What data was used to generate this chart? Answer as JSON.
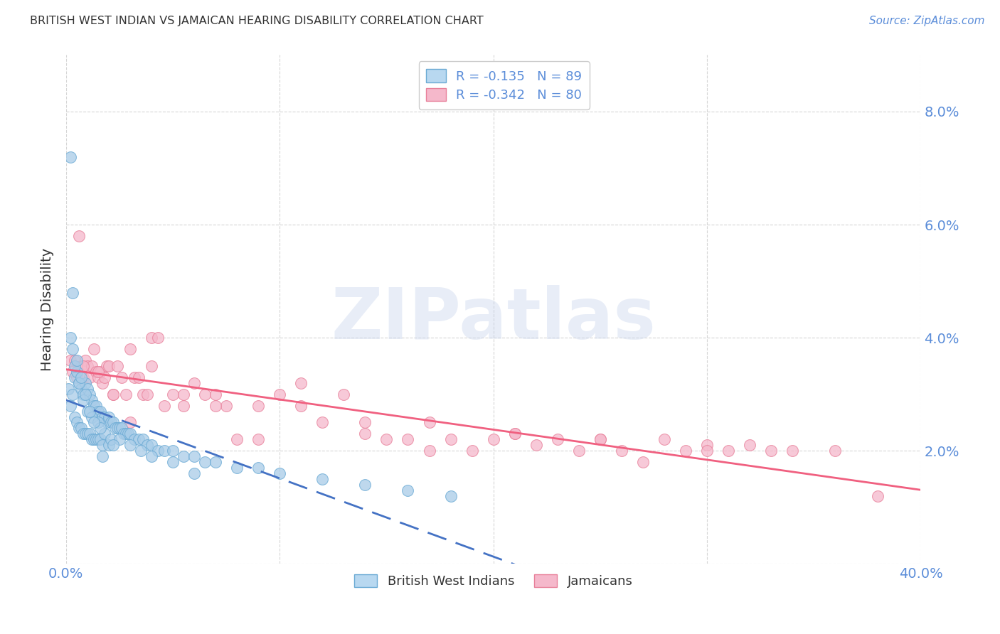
{
  "title": "BRITISH WEST INDIAN VS JAMAICAN HEARING DISABILITY CORRELATION CHART",
  "source": "Source: ZipAtlas.com",
  "ylabel": "Hearing Disability",
  "x_min": 0.0,
  "x_max": 0.4,
  "y_min": 0.0,
  "y_max": 0.09,
  "yticks": [
    0.0,
    0.02,
    0.04,
    0.06,
    0.08
  ],
  "ytick_labels": [
    "",
    "2.0%",
    "4.0%",
    "6.0%",
    "8.0%"
  ],
  "xticks": [
    0.0,
    0.1,
    0.2,
    0.3,
    0.4
  ],
  "xtick_labels": [
    "0.0%",
    "",
    "",
    "",
    "40.0%"
  ],
  "series1_label": "British West Indians",
  "series2_label": "Jamaicans",
  "series1_color": "#a8cce8",
  "series2_color": "#f5b8cb",
  "series1_edge_color": "#6aaad4",
  "series2_edge_color": "#e8809a",
  "line1_color": "#4472c4",
  "line2_color": "#f06080",
  "R1": -0.135,
  "N1": 89,
  "R2": -0.342,
  "N2": 80,
  "legend_box_color1": "#b8d8f0",
  "legend_box_color2": "#f5b8cb",
  "watermark": "ZIPatlas",
  "background_color": "#ffffff",
  "grid_color": "#cccccc",
  "title_color": "#333333",
  "tick_label_color": "#5b8dd9",
  "series1_x": [
    0.001,
    0.002,
    0.002,
    0.003,
    0.003,
    0.004,
    0.004,
    0.005,
    0.005,
    0.006,
    0.006,
    0.007,
    0.007,
    0.008,
    0.008,
    0.009,
    0.009,
    0.01,
    0.01,
    0.011,
    0.011,
    0.012,
    0.012,
    0.013,
    0.013,
    0.014,
    0.014,
    0.015,
    0.015,
    0.016,
    0.016,
    0.017,
    0.017,
    0.018,
    0.019,
    0.02,
    0.02,
    0.021,
    0.022,
    0.023,
    0.024,
    0.025,
    0.026,
    0.027,
    0.028,
    0.029,
    0.03,
    0.032,
    0.034,
    0.036,
    0.038,
    0.04,
    0.043,
    0.046,
    0.05,
    0.055,
    0.06,
    0.065,
    0.07,
    0.08,
    0.09,
    0.1,
    0.12,
    0.14,
    0.16,
    0.18,
    0.004,
    0.006,
    0.008,
    0.01,
    0.012,
    0.015,
    0.018,
    0.021,
    0.025,
    0.03,
    0.035,
    0.04,
    0.05,
    0.06,
    0.003,
    0.007,
    0.011,
    0.016,
    0.022,
    0.002,
    0.005,
    0.009,
    0.013,
    0.017
  ],
  "series1_y": [
    0.031,
    0.072,
    0.028,
    0.03,
    0.048,
    0.033,
    0.026,
    0.034,
    0.025,
    0.032,
    0.024,
    0.031,
    0.024,
    0.03,
    0.023,
    0.032,
    0.023,
    0.031,
    0.023,
    0.03,
    0.023,
    0.029,
    0.022,
    0.028,
    0.022,
    0.028,
    0.022,
    0.027,
    0.022,
    0.027,
    0.022,
    0.026,
    0.021,
    0.026,
    0.025,
    0.026,
    0.021,
    0.025,
    0.025,
    0.024,
    0.024,
    0.024,
    0.024,
    0.023,
    0.023,
    0.023,
    0.023,
    0.022,
    0.022,
    0.022,
    0.021,
    0.021,
    0.02,
    0.02,
    0.02,
    0.019,
    0.019,
    0.018,
    0.018,
    0.017,
    0.017,
    0.016,
    0.015,
    0.014,
    0.013,
    0.012,
    0.035,
    0.032,
    0.029,
    0.027,
    0.026,
    0.025,
    0.023,
    0.022,
    0.022,
    0.021,
    0.02,
    0.019,
    0.018,
    0.016,
    0.038,
    0.033,
    0.027,
    0.024,
    0.021,
    0.04,
    0.036,
    0.03,
    0.025,
    0.019
  ],
  "series2_x": [
    0.002,
    0.003,
    0.004,
    0.005,
    0.006,
    0.007,
    0.008,
    0.009,
    0.01,
    0.011,
    0.012,
    0.013,
    0.014,
    0.015,
    0.016,
    0.017,
    0.018,
    0.019,
    0.02,
    0.022,
    0.024,
    0.026,
    0.028,
    0.03,
    0.032,
    0.034,
    0.036,
    0.038,
    0.04,
    0.043,
    0.046,
    0.05,
    0.055,
    0.06,
    0.065,
    0.07,
    0.075,
    0.08,
    0.09,
    0.1,
    0.11,
    0.12,
    0.13,
    0.14,
    0.15,
    0.16,
    0.17,
    0.18,
    0.19,
    0.2,
    0.21,
    0.22,
    0.23,
    0.24,
    0.25,
    0.26,
    0.27,
    0.28,
    0.29,
    0.3,
    0.31,
    0.32,
    0.33,
    0.34,
    0.36,
    0.38,
    0.008,
    0.015,
    0.022,
    0.03,
    0.04,
    0.055,
    0.07,
    0.09,
    0.11,
    0.14,
    0.17,
    0.21,
    0.25,
    0.3
  ],
  "series2_y": [
    0.036,
    0.034,
    0.036,
    0.033,
    0.058,
    0.035,
    0.033,
    0.036,
    0.035,
    0.033,
    0.035,
    0.038,
    0.034,
    0.033,
    0.034,
    0.032,
    0.033,
    0.035,
    0.035,
    0.03,
    0.035,
    0.033,
    0.03,
    0.038,
    0.033,
    0.033,
    0.03,
    0.03,
    0.04,
    0.04,
    0.028,
    0.03,
    0.028,
    0.032,
    0.03,
    0.03,
    0.028,
    0.022,
    0.028,
    0.03,
    0.032,
    0.025,
    0.03,
    0.025,
    0.022,
    0.022,
    0.025,
    0.022,
    0.02,
    0.022,
    0.023,
    0.021,
    0.022,
    0.02,
    0.022,
    0.02,
    0.018,
    0.022,
    0.02,
    0.021,
    0.02,
    0.021,
    0.02,
    0.02,
    0.02,
    0.012,
    0.035,
    0.034,
    0.03,
    0.025,
    0.035,
    0.03,
    0.028,
    0.022,
    0.028,
    0.023,
    0.02,
    0.023,
    0.022,
    0.02
  ]
}
